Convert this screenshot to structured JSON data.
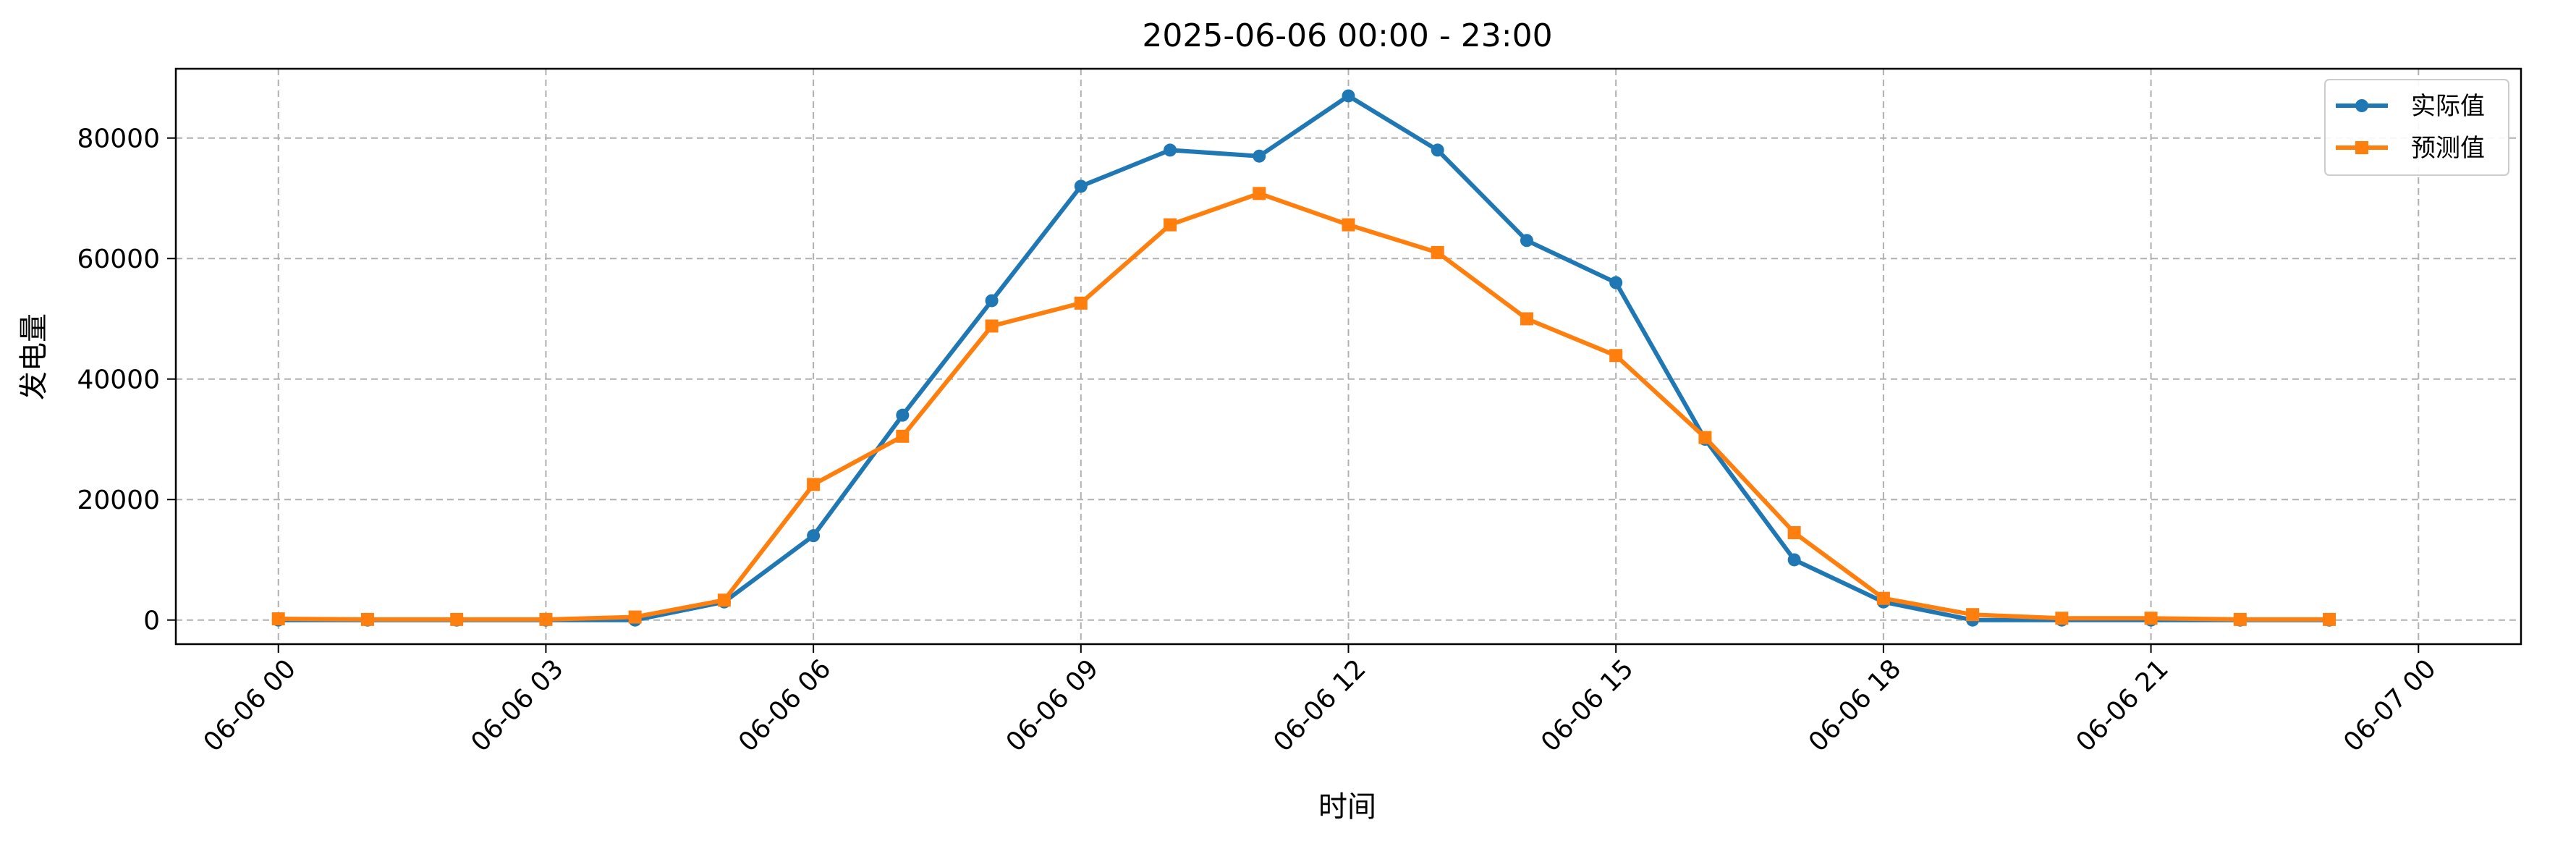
{
  "chart_data": {
    "type": "line",
    "title": "2025-06-06 00:00 - 23:00",
    "xlabel": "时间",
    "ylabel": "发电量",
    "x": [
      "00:00",
      "01:00",
      "02:00",
      "03:00",
      "04:00",
      "05:00",
      "06:00",
      "07:00",
      "08:00",
      "09:00",
      "10:00",
      "11:00",
      "12:00",
      "13:00",
      "14:00",
      "15:00",
      "16:00",
      "17:00",
      "18:00",
      "19:00",
      "20:00",
      "21:00",
      "22:00",
      "23:00"
    ],
    "x_ticks": [
      "06-06 00",
      "06-06 03",
      "06-06 06",
      "06-06 09",
      "06-06 12",
      "06-06 15",
      "06-06 18",
      "06-06 21",
      "06-07 00"
    ],
    "y_ticks": [
      0,
      20000,
      40000,
      60000,
      80000
    ],
    "ylim": [
      -4000,
      91500
    ],
    "xlim_hours": [
      -1.15,
      25.15
    ],
    "grid": true,
    "legend_position": "top-right",
    "series": [
      {
        "name": "实际值",
        "color": "#1f77b4",
        "marker": "circle",
        "values": [
          0,
          0,
          0,
          0,
          0,
          3000,
          14000,
          34000,
          53000,
          72000,
          78000,
          77000,
          87000,
          78000,
          63000,
          56000,
          30000,
          10000,
          3000,
          0,
          0,
          0,
          0,
          0
        ]
      },
      {
        "name": "预测值",
        "color": "#ff7f0e",
        "marker": "square",
        "values": [
          200,
          100,
          100,
          100,
          500,
          3300,
          22500,
          30500,
          48800,
          52600,
          65600,
          70800,
          65600,
          61000,
          50000,
          43900,
          30300,
          14500,
          3600,
          900,
          300,
          300,
          100,
          100
        ]
      }
    ]
  }
}
